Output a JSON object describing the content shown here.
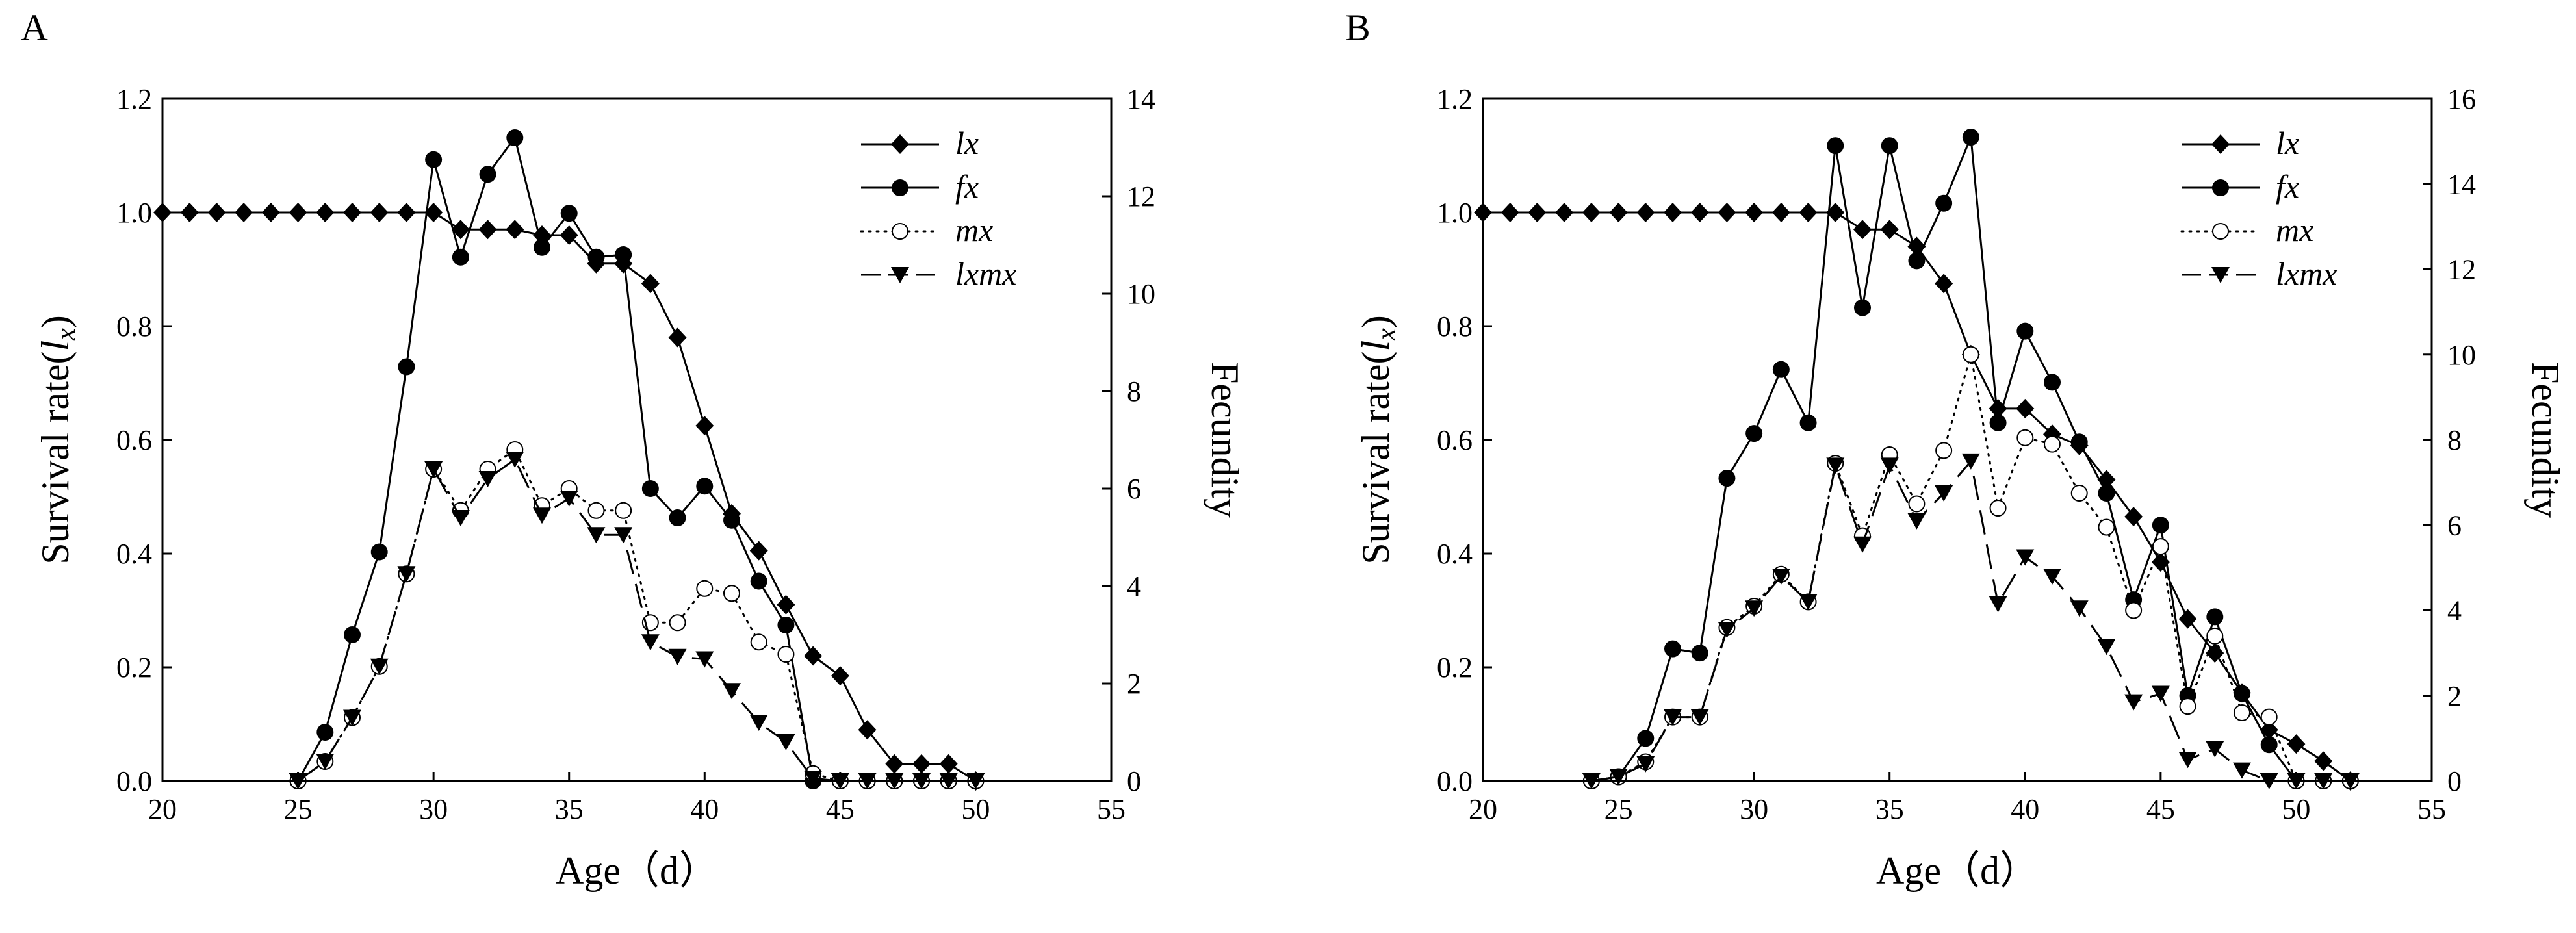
{
  "chart_data": [
    {
      "type": "line",
      "panel_label": "A",
      "xlabel": "Age（d）",
      "ylabel": "Survival rate(",
      "ylabel_italic": "l",
      "ylabel_sub": "x",
      "ylabel_close": ")",
      "y2label": "Fecundity",
      "xlim": [
        20,
        55
      ],
      "ylim": [
        0,
        1.2
      ],
      "y2lim": [
        0,
        14
      ],
      "x_ticks": [
        "20",
        "25",
        "30",
        "35",
        "40",
        "45",
        "50",
        "55"
      ],
      "y_ticks": [
        "0.0",
        "0.2",
        "0.4",
        "0.6",
        "0.8",
        "1.0",
        "1.2"
      ],
      "y2_ticks": [
        "0",
        "2",
        "4",
        "6",
        "8",
        "10",
        "12",
        "14"
      ],
      "legend_position": "top-right",
      "legend": [
        "lx",
        "fx",
        "mx",
        "lxmx"
      ],
      "series": [
        {
          "name": "lx",
          "axis": "left",
          "marker": "diamond",
          "line": "solid",
          "x": [
            20,
            21,
            22,
            23,
            24,
            25,
            26,
            27,
            28,
            29,
            30,
            31,
            32,
            33,
            34,
            35,
            36,
            37,
            38,
            39,
            40,
            41,
            42,
            43,
            44,
            45,
            46,
            47,
            48,
            49,
            50
          ],
          "y": [
            1,
            1,
            1,
            1,
            1,
            1,
            1,
            1,
            1,
            1,
            1,
            0.97,
            0.97,
            0.97,
            0.96,
            0.96,
            0.91,
            0.91,
            0.875,
            0.78,
            0.625,
            0.47,
            0.405,
            0.31,
            0.22,
            0.185,
            0.09,
            0.03,
            0.03,
            0.03,
            0
          ]
        },
        {
          "name": "fx",
          "axis": "right",
          "marker": "filled-circle",
          "line": "solid",
          "x": [
            25,
            26,
            27,
            28,
            29,
            30,
            31,
            32,
            33,
            34,
            35,
            36,
            37,
            38,
            39,
            40,
            41,
            42,
            43,
            44,
            45,
            46,
            47,
            48,
            49,
            50
          ],
          "y": [
            0,
            1,
            3,
            4.7,
            8.5,
            12.75,
            10.75,
            12.45,
            13.2,
            10.95,
            11.65,
            10.75,
            10.8,
            6,
            5.4,
            6.05,
            5.35,
            4.1,
            3.2,
            0,
            0,
            0,
            0,
            0,
            0,
            0
          ]
        },
        {
          "name": "mx",
          "axis": "right",
          "marker": "open-circle",
          "line": "dotted",
          "x": [
            25,
            26,
            27,
            28,
            29,
            30,
            31,
            32,
            33,
            34,
            35,
            36,
            37,
            38,
            39,
            40,
            41,
            42,
            43,
            44,
            45,
            46,
            47,
            48,
            49,
            50
          ],
          "y": [
            0,
            0.4,
            1.3,
            2.35,
            4.25,
            6.4,
            5.55,
            6.4,
            6.8,
            5.65,
            6,
            5.55,
            5.55,
            3.25,
            3.25,
            3.95,
            3.85,
            2.85,
            2.6,
            0.15,
            0,
            0,
            0,
            0,
            0,
            0
          ]
        },
        {
          "name": "lxmx",
          "axis": "right",
          "marker": "down-triangle",
          "line": "dashed",
          "x": [
            25,
            26,
            27,
            28,
            29,
            30,
            31,
            32,
            33,
            34,
            35,
            36,
            37,
            38,
            39,
            40,
            41,
            42,
            43,
            44,
            45,
            46,
            47,
            48,
            49,
            50
          ],
          "y": [
            0,
            0.4,
            1.3,
            2.35,
            4.25,
            6.4,
            5.4,
            6.2,
            6.6,
            5.45,
            5.8,
            5.05,
            5.05,
            2.85,
            2.55,
            2.5,
            1.85,
            1.2,
            0.8,
            0.05,
            0,
            0,
            0,
            0,
            0,
            0
          ]
        }
      ]
    },
    {
      "type": "line",
      "panel_label": "B",
      "xlabel": "Age（d）",
      "ylabel": "Survival rate(",
      "ylabel_italic": "l",
      "ylabel_sub": "x",
      "ylabel_close": ")",
      "y2label": "Fecundity",
      "xlim": [
        20,
        55
      ],
      "ylim": [
        0,
        1.2
      ],
      "y2lim": [
        0,
        16
      ],
      "x_ticks": [
        "20",
        "25",
        "30",
        "35",
        "40",
        "45",
        "50",
        "55"
      ],
      "y_ticks": [
        "0.0",
        "0.2",
        "0.4",
        "0.6",
        "0.8",
        "1.0",
        "1.2"
      ],
      "y2_ticks": [
        "0",
        "2",
        "4",
        "6",
        "8",
        "10",
        "12",
        "14",
        "16"
      ],
      "legend_position": "top-right",
      "legend": [
        "lx",
        "fx",
        "mx",
        "lxmx"
      ],
      "series": [
        {
          "name": "lx",
          "axis": "left",
          "marker": "diamond",
          "line": "solid",
          "x": [
            20,
            21,
            22,
            23,
            24,
            25,
            26,
            27,
            28,
            29,
            30,
            31,
            32,
            33,
            34,
            35,
            36,
            37,
            38,
            39,
            40,
            41,
            42,
            43,
            44,
            45,
            46,
            47,
            48,
            49,
            50,
            51,
            52
          ],
          "y": [
            1,
            1,
            1,
            1,
            1,
            1,
            1,
            1,
            1,
            1,
            1,
            1,
            1,
            1,
            0.97,
            0.97,
            0.94,
            0.875,
            0.75,
            0.655,
            0.655,
            0.61,
            0.59,
            0.53,
            0.465,
            0.385,
            0.285,
            0.225,
            0.155,
            0.09,
            0.065,
            0.035,
            0
          ]
        },
        {
          "name": "fx",
          "axis": "right",
          "marker": "filled-circle",
          "line": "solid",
          "x": [
            24,
            25,
            26,
            27,
            28,
            29,
            30,
            31,
            32,
            33,
            34,
            35,
            36,
            37,
            38,
            39,
            40,
            41,
            42,
            43,
            44,
            45,
            46,
            47,
            48,
            49,
            50,
            51,
            52
          ],
          "y": [
            0,
            0.1,
            1,
            3.1,
            3,
            7.1,
            8.15,
            9.65,
            8.4,
            14.9,
            11.1,
            14.9,
            12.2,
            13.55,
            15.1,
            8.4,
            10.55,
            9.35,
            7.95,
            6.75,
            4.25,
            6,
            2,
            3.85,
            2.05,
            0.85,
            0,
            0,
            0
          ]
        },
        {
          "name": "mx",
          "axis": "right",
          "marker": "open-circle",
          "line": "dotted",
          "x": [
            24,
            25,
            26,
            27,
            28,
            29,
            30,
            31,
            32,
            33,
            34,
            35,
            36,
            37,
            38,
            39,
            40,
            41,
            42,
            43,
            44,
            45,
            46,
            47,
            48,
            49,
            50,
            51,
            52
          ],
          "y": [
            0,
            0.1,
            0.45,
            1.5,
            1.5,
            3.6,
            4.1,
            4.85,
            4.2,
            7.45,
            5.75,
            7.65,
            6.5,
            7.75,
            10,
            6.4,
            8.05,
            7.9,
            6.75,
            5.95,
            4,
            5.5,
            1.75,
            3.4,
            1.6,
            1.5,
            0,
            0,
            0
          ]
        },
        {
          "name": "lxmx",
          "axis": "right",
          "marker": "down-triangle",
          "line": "dashed",
          "x": [
            24,
            25,
            26,
            27,
            28,
            29,
            30,
            31,
            32,
            33,
            34,
            35,
            36,
            37,
            38,
            39,
            40,
            41,
            42,
            43,
            44,
            45,
            46,
            47,
            48,
            49,
            50,
            51,
            52
          ],
          "y": [
            0,
            0.1,
            0.4,
            1.5,
            1.5,
            3.55,
            4.05,
            4.8,
            4.2,
            7.4,
            5.55,
            7.4,
            6.1,
            6.75,
            7.5,
            4.15,
            5.25,
            4.8,
            4.05,
            3.15,
            1.85,
            2.05,
            0.5,
            0.75,
            0.25,
            0,
            0,
            0,
            0
          ]
        }
      ]
    }
  ]
}
